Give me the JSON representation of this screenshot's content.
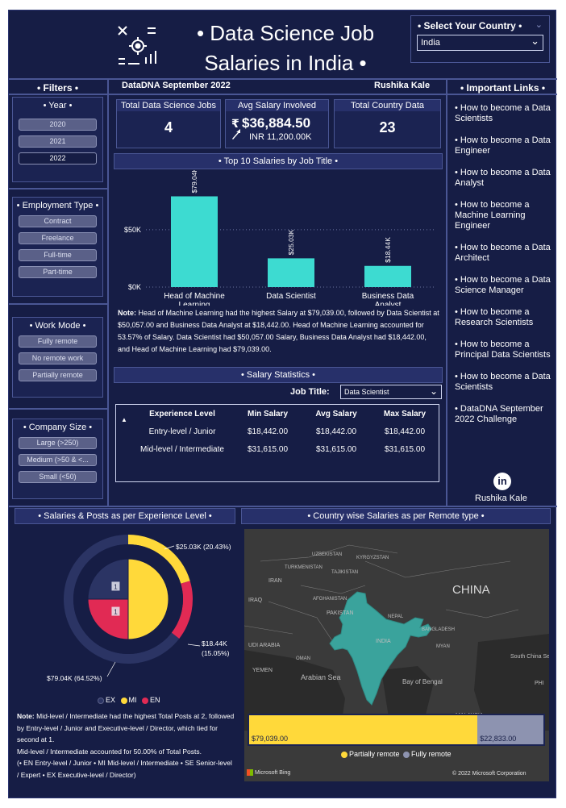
{
  "header": {
    "title": "• Data Science Job Salaries in India •",
    "country_label": "• Select Your Country •",
    "country_value": "India",
    "dataset": "DataDNA September 2022",
    "author": "Rushika Kale"
  },
  "filters": {
    "title": "• Filters •",
    "year": {
      "label": "• Year •",
      "options": [
        "2020",
        "2021",
        "2022"
      ],
      "selected": "2022"
    },
    "employment": {
      "label": "• Employment Type •",
      "options": [
        "Contract",
        "Freelance",
        "Full-time",
        "Part-time"
      ]
    },
    "work_mode": {
      "label": "• Work Mode •",
      "options": [
        "Fully remote",
        "No remote work",
        "Partially remote"
      ]
    },
    "company_size": {
      "label": "• Company Size •",
      "options": [
        "Large (>250)",
        "Medium (>50 & <...",
        "Small (<50)"
      ]
    }
  },
  "kpis": {
    "jobs": {
      "label": "Total Data Science Jobs",
      "value": "4"
    },
    "avg": {
      "label": "Avg Salary Involved",
      "value": "$36,884.50",
      "sub": "INR 11,200.00K"
    },
    "countries": {
      "label": "Total Country Data",
      "value": "23"
    }
  },
  "top_salaries": {
    "title": "• Top 10 Salaries by Job Title •",
    "note_prefix": "Note:",
    "note": "Head of Machine Learning had the highest Salary at $79,039.00, followed by Data Scientist at $50,057.00 and Business Data Analyst at $18,442.00. Head of Machine Learning accounted for 53.57% of Salary. Data Scientist had $50,057.00 Salary, Business Data Analyst had $18,442.00, and Head of Machine Learning had $79,039.00."
  },
  "salary_stats": {
    "title": "• Salary Statistics •",
    "job_title_label": "Job Title:",
    "job_title_value": "Data Scientist",
    "columns": [
      "Experience Level",
      "Min Salary",
      "Avg Salary",
      "Max Salary"
    ],
    "rows": [
      [
        "Entry-level / Junior",
        "$18,442.00",
        "$18,442.00",
        "$18,442.00"
      ],
      [
        "Mid-level / Intermediate",
        "$31,615.00",
        "$31,615.00",
        "$31,615.00"
      ]
    ]
  },
  "links": {
    "title": "• Important Links •",
    "items": [
      "• How to become a Data Scientists",
      "• How to become a Data Engineer",
      "• How to become a Data Analyst",
      "• How to become a Machine Learning Engineer",
      "• How to become a Data Architect",
      "• How to become a Data Science Manager",
      "• How to become a Research Scientists",
      "• How to become a Principal Data Scientists",
      "• How to become a Data Scientists",
      "• DataDNA September 2022 Challenge"
    ],
    "profile_name": "Rushika Kale"
  },
  "experience_chart": {
    "title": "• Salaries & Posts as per Experience Level •",
    "legend": [
      "EX",
      "MI",
      "EN"
    ],
    "note_prefix": "Note:",
    "note_lines": [
      "Mid-level / Intermediate had the highest Total Posts at 2, followed by Entry-level / Junior and Executive-level / Director, which tied for second at 1.",
      "Mid-level / Intermediate accounted for 50.00% of Total Posts.",
      "(• EN Entry-level / Junior • MI Mid-level / Intermediate • SE Senior-level / Expert • EX Executive-level / Director)"
    ]
  },
  "map_panel": {
    "title": "• Country wise Salaries as per Remote type •",
    "labels": [
      "UZBEKISTAN",
      "KYRGYZSTAN",
      "TURKMENISTAN",
      "TAJIKISTAN",
      "AFGHANISTAN",
      "IRAN",
      "IRAQ",
      "PAKISTAN",
      "CHINA",
      "NEPAL",
      "UDI ARABIA",
      "INDIA",
      "BANGLADESH",
      "OMAN",
      "YEMEN",
      "Arabian Sea",
      "Bay of Bengal",
      "MYAN",
      "South China Sea",
      "PHI",
      "MALAYSIA"
    ],
    "bar_values": [
      "$79,039.00",
      "$22,833.00"
    ],
    "legend": [
      "Partially remote",
      "Fully remote"
    ],
    "bing": "Microsoft Bing",
    "copyright": "© 2022 Microsoft Corporation"
  },
  "colors": {
    "background": "#161d45",
    "panel": "#1b2352",
    "accent_teal": "#3ddbd1",
    "ex_color": "#2b3464",
    "mi_color": "#ffd93a",
    "en_color": "#e12a54",
    "fully_remote": "#8d93b0"
  },
  "chart_data": [
    {
      "type": "bar",
      "title": "• Top 10 Salaries by Job Title •",
      "categories": [
        "Head of Machine Learning",
        "Data Scientist",
        "Business Data Analyst"
      ],
      "values": [
        79040,
        25030,
        18440
      ],
      "data_labels": [
        "$79.04K",
        "$25.03K",
        "$18.44K"
      ],
      "ylim": [
        0,
        85000
      ],
      "yticks": [
        "$0K",
        "$50K"
      ],
      "grid": true
    },
    {
      "type": "pie",
      "title": "• Salaries & Posts as per Experience Level •",
      "outer_ring": {
        "labels": [
          "MI",
          "EN",
          "EX"
        ],
        "values": [
          25030,
          18440,
          79040
        ],
        "data_labels": [
          "$25.03K (20.43%)",
          "$18.44K (15.05%)",
          "$79.04K (64.52%)"
        ]
      },
      "inner_pie": {
        "labels": [
          "MI",
          "EN",
          "EX"
        ],
        "values": [
          2,
          1,
          1
        ],
        "data_labels": [
          "",
          "1",
          "1"
        ]
      }
    },
    {
      "type": "bar",
      "title": "• Country wise Salaries as per Remote type •",
      "categories": [
        "India"
      ],
      "series": [
        {
          "name": "Partially remote",
          "values": [
            79039
          ]
        },
        {
          "name": "Fully remote",
          "values": [
            22833
          ]
        }
      ]
    }
  ]
}
